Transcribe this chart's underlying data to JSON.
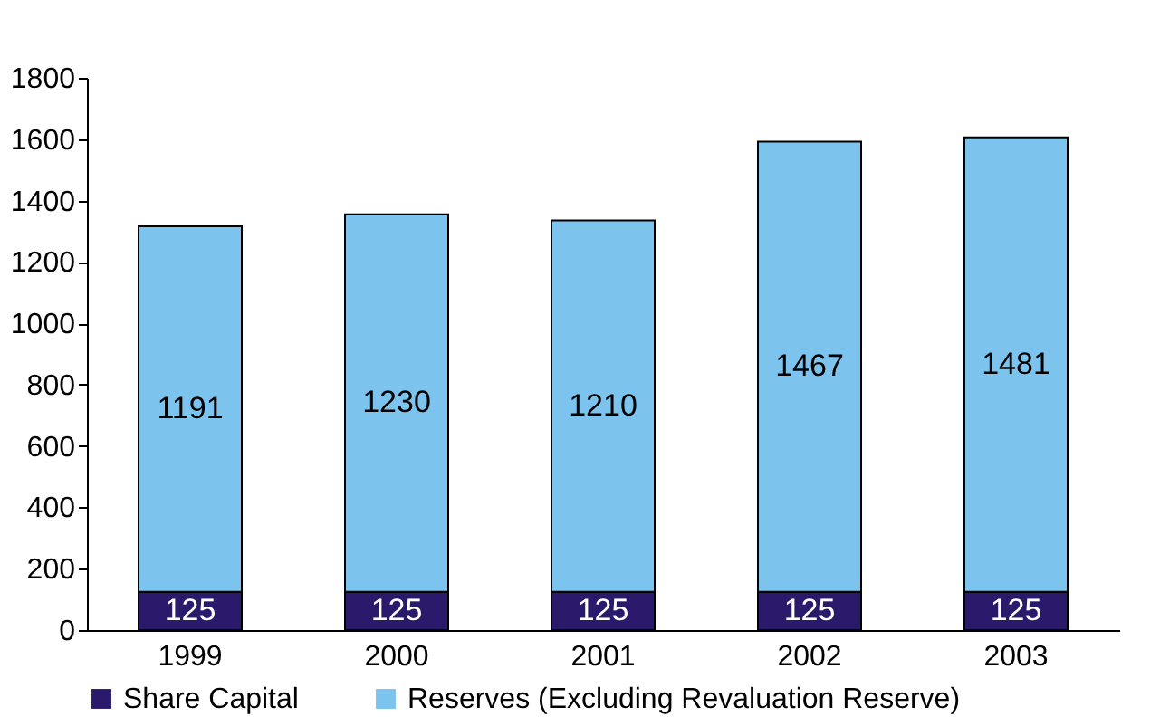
{
  "chart_data": {
    "type": "bar",
    "stacked": true,
    "categories": [
      "1999",
      "2000",
      "2001",
      "2002",
      "2003"
    ],
    "series": [
      {
        "name": "Share Capital",
        "color": "#2b1a6b",
        "values": [
          125,
          125,
          125,
          125,
          125
        ]
      },
      {
        "name": "Reserves (Excluding Revaluation Reserve)",
        "color": "#7cc3ee",
        "values": [
          1191,
          1230,
          1210,
          1467,
          1481
        ]
      }
    ],
    "ylim": [
      0,
      1800
    ],
    "yticks": [
      0,
      200,
      400,
      600,
      800,
      1000,
      1200,
      1400,
      1600,
      1800
    ],
    "grid": false,
    "legend": "bottom",
    "data_labels": true
  }
}
